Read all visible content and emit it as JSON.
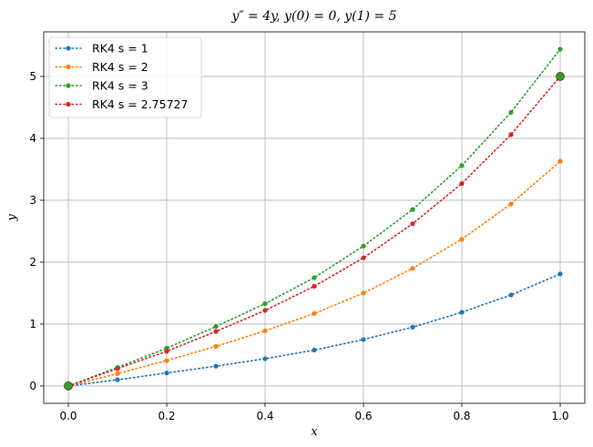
{
  "chart_data": {
    "type": "line",
    "title": "y″ = 4y, y(0) = 0, y(1) = 5",
    "xlabel": "x",
    "ylabel": "y",
    "xlim": [
      -0.05,
      1.05
    ],
    "ylim": [
      -0.28,
      5.72
    ],
    "x_ticks": [
      "0.0",
      "0.2",
      "0.4",
      "0.6",
      "0.8",
      "1.0"
    ],
    "y_ticks": [
      "0",
      "1",
      "2",
      "3",
      "4",
      "5"
    ],
    "grid": true,
    "legend_position": "top-left",
    "x": [
      0.0,
      0.1,
      0.2,
      0.3,
      0.4,
      0.5,
      0.6,
      0.7,
      0.8,
      0.9,
      1.0
    ],
    "series": [
      {
        "name": "RK4 s = 1",
        "color": "#1f77b4",
        "values": [
          0.0,
          0.1,
          0.21,
          0.32,
          0.44,
          0.58,
          0.75,
          0.95,
          1.19,
          1.47,
          1.81
        ]
      },
      {
        "name": "RK4 s = 2",
        "color": "#ff7f0e",
        "values": [
          0.0,
          0.2,
          0.41,
          0.64,
          0.89,
          1.17,
          1.5,
          1.9,
          2.37,
          2.94,
          3.63
        ]
      },
      {
        "name": "RK4 s = 3",
        "color": "#2ca02c",
        "values": [
          0.0,
          0.3,
          0.61,
          0.96,
          1.33,
          1.75,
          2.26,
          2.85,
          3.56,
          4.42,
          5.44
        ]
      },
      {
        "name": "RK4 s = 2.75727",
        "color": "#d62728",
        "values": [
          0.0,
          0.28,
          0.56,
          0.88,
          1.22,
          1.61,
          2.07,
          2.62,
          3.27,
          4.06,
          5.0
        ]
      }
    ],
    "boundary_points": [
      {
        "x": 0.0,
        "y": 0.0
      },
      {
        "x": 1.0,
        "y": 5.0
      }
    ],
    "boundary_color": "#2ca02c"
  }
}
